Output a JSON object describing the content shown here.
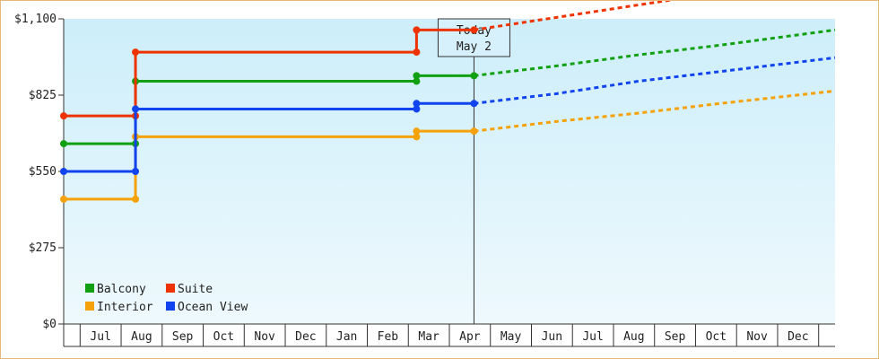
{
  "chart_data": {
    "type": "line",
    "categories": [
      "Jul",
      "Aug",
      "Sep",
      "Oct",
      "Nov",
      "Dec",
      "Jan",
      "Feb",
      "Mar",
      "Apr",
      "May",
      "Jun",
      "Jul",
      "Aug",
      "Sep",
      "Oct",
      "Nov",
      "Dec"
    ],
    "x_start": 0,
    "x_end": 18.8,
    "ylim": [
      0,
      1100
    ],
    "yticks": [
      0,
      275,
      550,
      825,
      1100
    ],
    "ytick_labels": [
      "$0",
      "$275",
      "$550",
      "$825",
      "$1,100"
    ],
    "grid": false,
    "legend_position": "bottom-left",
    "today": {
      "x": 10,
      "label_line1": "Today",
      "label_line2": "May 2"
    },
    "series": [
      {
        "name": "Balcony",
        "color": "#11a011",
        "values": [
          [
            0,
            650
          ],
          [
            1.75,
            650
          ],
          [
            1.75,
            875
          ],
          [
            8.6,
            875
          ],
          [
            8.6,
            895
          ],
          [
            10,
            895
          ]
        ],
        "markers": [
          [
            0,
            650
          ],
          [
            1.75,
            650
          ],
          [
            1.75,
            875
          ],
          [
            8.6,
            875
          ],
          [
            8.6,
            895
          ],
          [
            10,
            895
          ]
        ],
        "forecast": [
          [
            10,
            895
          ],
          [
            12,
            930
          ],
          [
            14,
            970
          ],
          [
            16,
            1005
          ],
          [
            18.8,
            1060
          ]
        ]
      },
      {
        "name": "Suite",
        "color": "#ee3300",
        "values": [
          [
            0,
            750
          ],
          [
            1.75,
            750
          ],
          [
            1.75,
            980
          ],
          [
            8.6,
            980
          ],
          [
            8.6,
            1060
          ],
          [
            10,
            1060
          ]
        ],
        "markers": [
          [
            0,
            750
          ],
          [
            1.75,
            750
          ],
          [
            1.75,
            980
          ],
          [
            8.6,
            980
          ],
          [
            8.6,
            1060
          ],
          [
            10,
            1060
          ]
        ],
        "forecast": [
          [
            10,
            1060
          ],
          [
            12,
            1105
          ],
          [
            14,
            1150
          ],
          [
            16,
            1195
          ],
          [
            18.8,
            1265
          ]
        ]
      },
      {
        "name": "Interior",
        "color": "#f5a20a",
        "values": [
          [
            0,
            450
          ],
          [
            1.75,
            450
          ],
          [
            1.75,
            675
          ],
          [
            8.6,
            675
          ],
          [
            8.6,
            695
          ],
          [
            10,
            695
          ]
        ],
        "markers": [
          [
            0,
            450
          ],
          [
            1.75,
            450
          ],
          [
            1.75,
            675
          ],
          [
            8.6,
            675
          ],
          [
            8.6,
            695
          ],
          [
            10,
            695
          ]
        ],
        "forecast": [
          [
            10,
            695
          ],
          [
            12,
            730
          ],
          [
            14,
            760
          ],
          [
            16,
            795
          ],
          [
            18.8,
            840
          ]
        ]
      },
      {
        "name": "Ocean View",
        "color": "#1144ee",
        "values": [
          [
            0,
            550
          ],
          [
            1.75,
            550
          ],
          [
            1.75,
            775
          ],
          [
            8.6,
            775
          ],
          [
            8.6,
            795
          ],
          [
            10,
            795
          ]
        ],
        "markers": [
          [
            0,
            550
          ],
          [
            1.75,
            550
          ],
          [
            1.75,
            775
          ],
          [
            8.6,
            775
          ],
          [
            8.6,
            795
          ],
          [
            10,
            795
          ]
        ],
        "forecast": [
          [
            10,
            795
          ],
          [
            12,
            830
          ],
          [
            14,
            875
          ],
          [
            16,
            910
          ],
          [
            18.8,
            960
          ]
        ]
      }
    ]
  }
}
